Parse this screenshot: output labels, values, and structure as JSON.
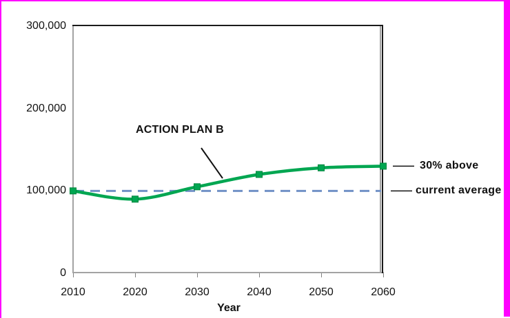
{
  "figure": {
    "background": "#ffffff",
    "selection_border_color": "#ff00ff"
  },
  "chart_data": {
    "type": "line",
    "title": "",
    "xlabel": "Year",
    "ylabel": "",
    "x": [
      2010,
      2020,
      2030,
      2040,
      2050,
      2060
    ],
    "xtick_labels": [
      "2010",
      "2020",
      "2030",
      "2040",
      "2050",
      "2060"
    ],
    "ytick_values": [
      0,
      100000,
      200000,
      300000
    ],
    "ytick_labels": [
      "0",
      "100,000",
      "200,000",
      "300,000"
    ],
    "xlim": [
      2010,
      2060
    ],
    "ylim": [
      0,
      300000
    ],
    "grid": false,
    "legend": "none",
    "series": [
      {
        "name": "ACTION PLAN B",
        "values": [
          100000,
          90000,
          105000,
          120000,
          128000,
          130000
        ],
        "color": "#00a651",
        "marker": "square",
        "smooth": true
      }
    ],
    "reference_line": {
      "value": 100000,
      "style": "dashed",
      "color": "#7191c6",
      "label": "current average"
    },
    "annotations": [
      {
        "text": "ACTION PLAN B",
        "points_to": "green series curve between 2030 and 2040"
      },
      {
        "text": "30% above",
        "points_to": "series end value at year 2060"
      },
      {
        "text": "current average",
        "points_to": "dashed reference line at 100,000"
      }
    ]
  },
  "labels": {
    "series_annotation": "ACTION PLAN B",
    "right_top": "30% above",
    "right_bottom": "current average",
    "x_axis_title": "Year"
  },
  "colors": {
    "series_green": "#00a651",
    "marker_edge_green": "#00863f",
    "reference_blue": "#7191c6",
    "axis_gray": "#a3a3a3",
    "tick_gray": "#808080",
    "frame_black": "#1a1a1a",
    "callout_black": "#111111",
    "selection_magenta": "#ff00ff"
  }
}
